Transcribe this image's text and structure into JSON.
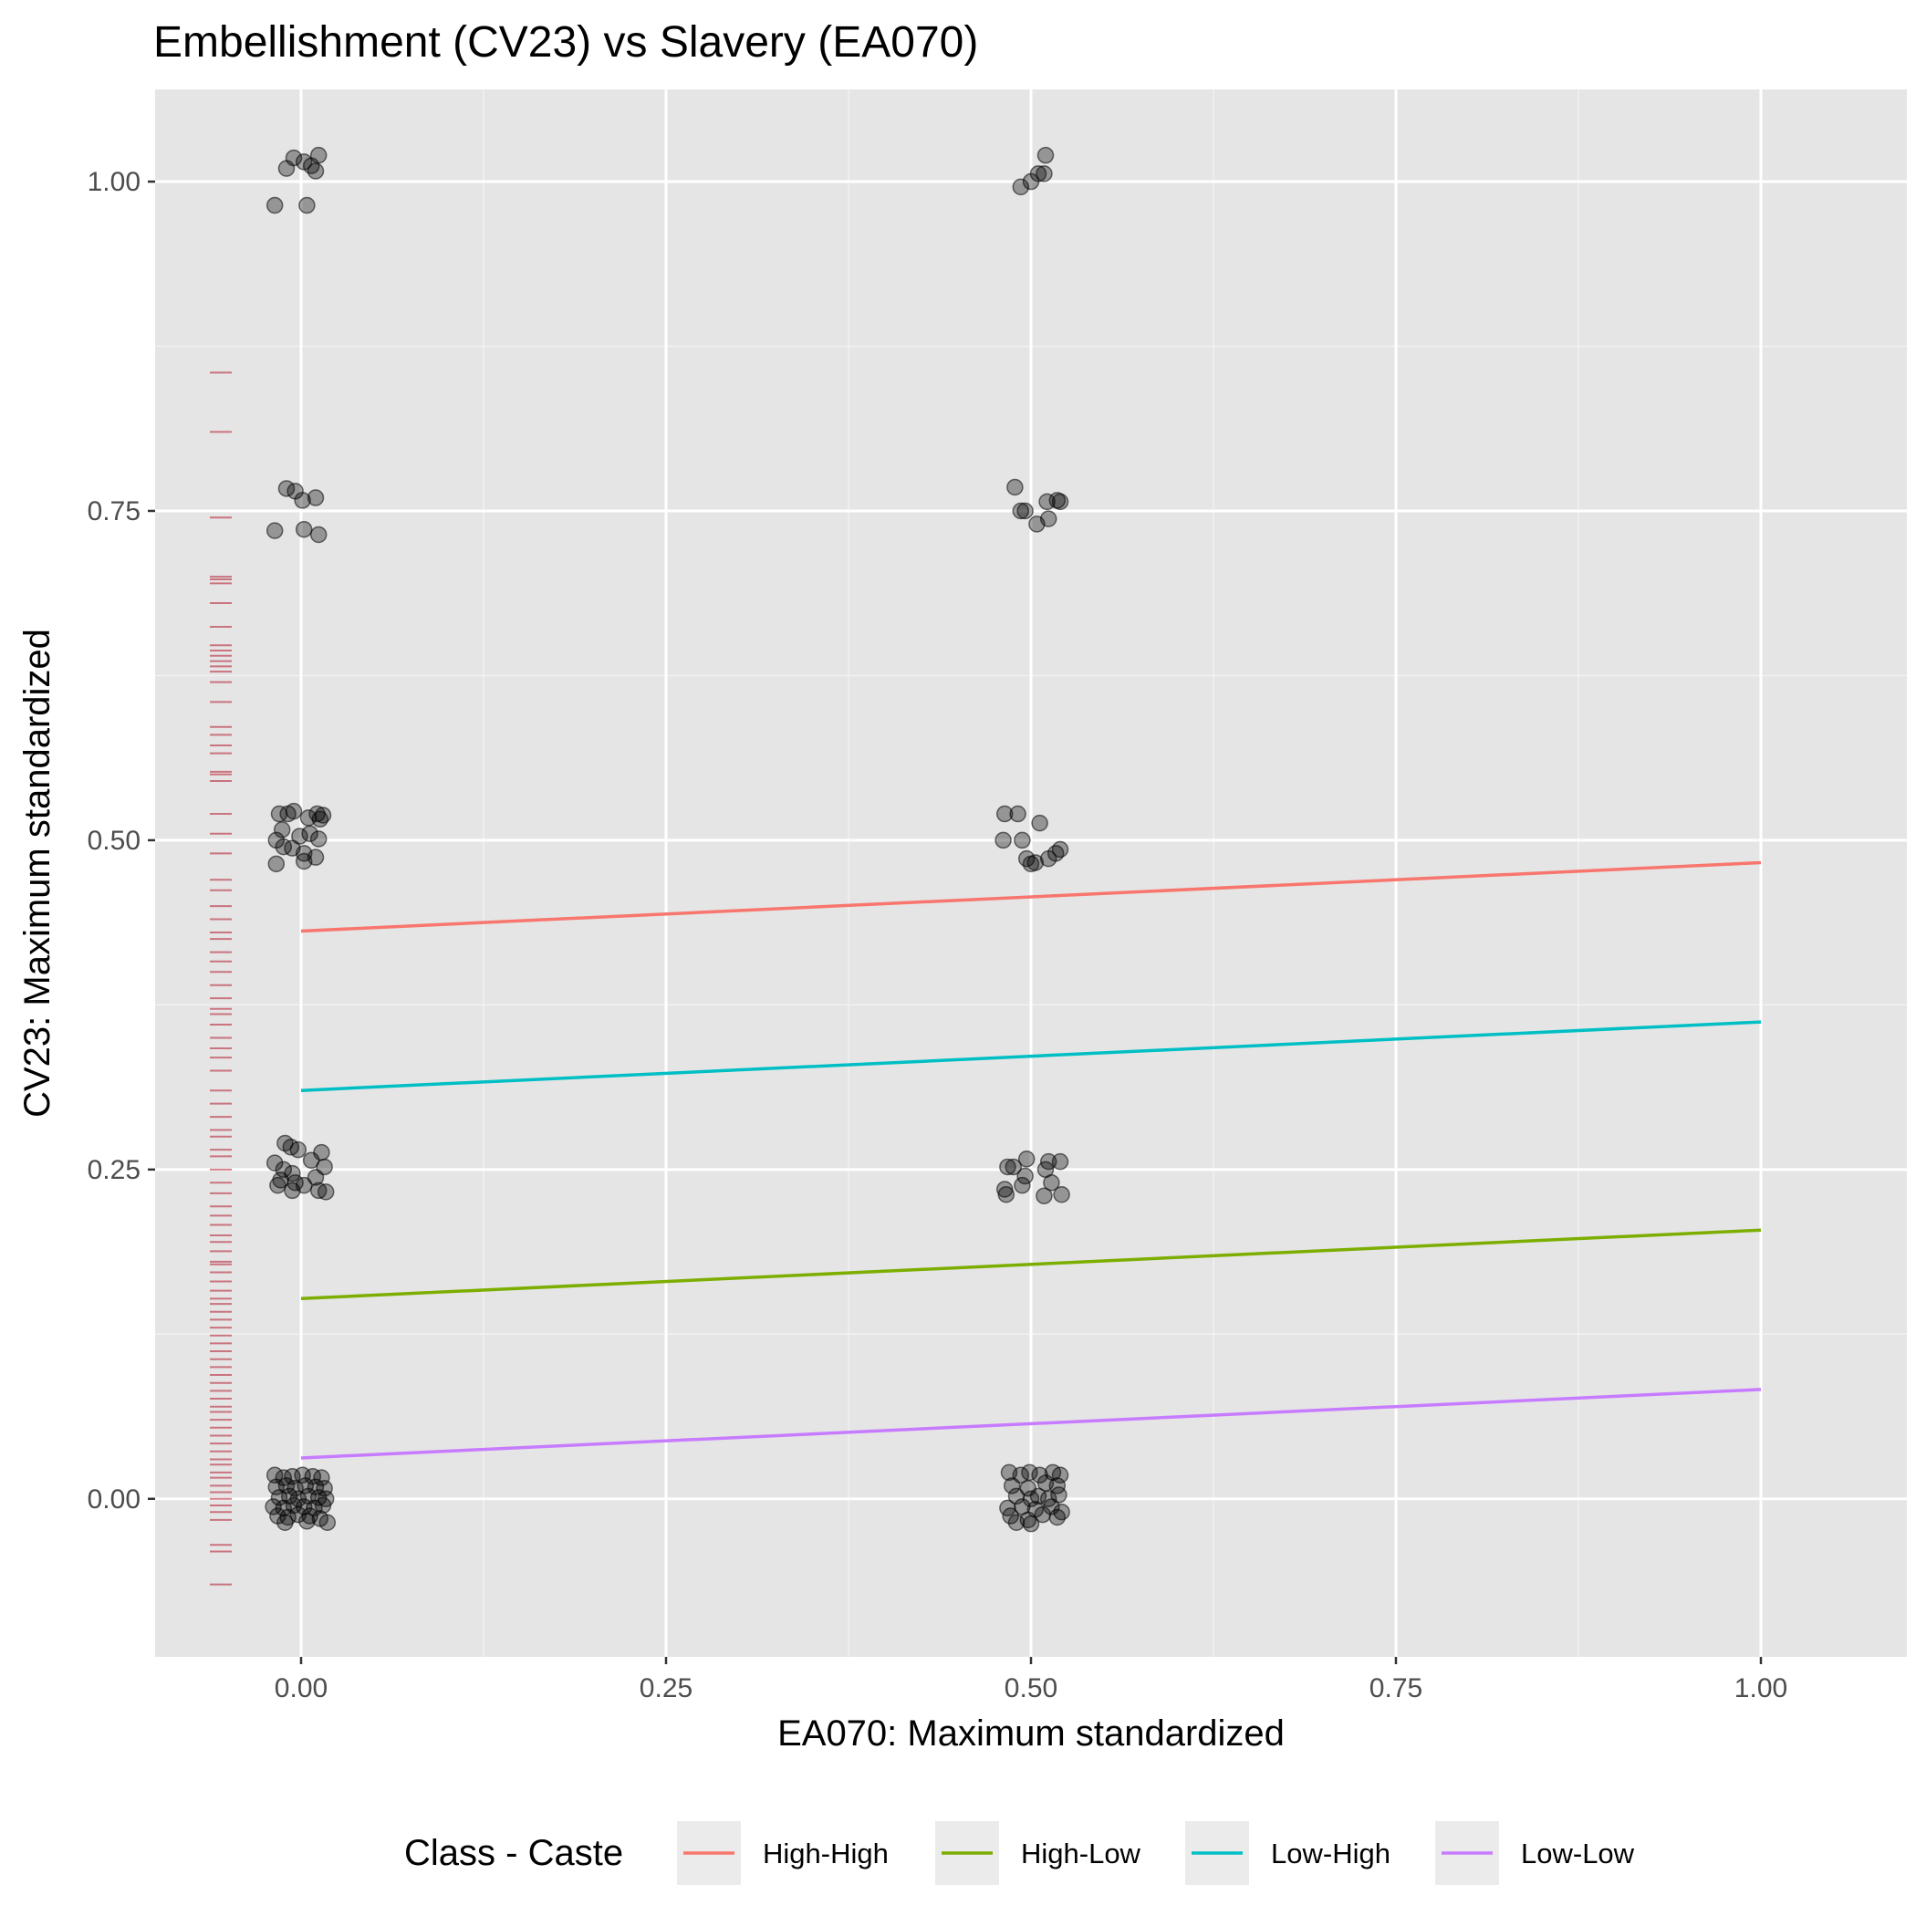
{
  "chart_data": {
    "type": "scatter",
    "title": "Embellishment (CV23) vs Slavery (EA070)",
    "xlabel": "EA070: Maximum standardized",
    "ylabel": "CV23: Maximum standardized",
    "xlim": [
      -0.1,
      1.1
    ],
    "ylim": [
      -0.12,
      1.07
    ],
    "x_ticks": [
      0,
      0.25,
      0.5,
      0.75,
      1
    ],
    "x_tick_labels": [
      "0.00",
      "0.25",
      "0.50",
      "0.75",
      "1.00"
    ],
    "y_ticks": [
      0,
      0.25,
      0.5,
      0.75,
      1
    ],
    "y_tick_labels": [
      "0.00",
      "0.25",
      "0.50",
      "0.75",
      "1.00"
    ],
    "grid": true,
    "background": "#e5e5e5",
    "legend_position": "bottom",
    "legend_title": "Class - Caste",
    "points": {
      "color": "#000000",
      "opacity": 0.35,
      "values": [
        [
          -0.01,
          1.01
        ],
        [
          -0.005,
          1.018
        ],
        [
          0.002,
          1.015
        ],
        [
          0.007,
          1.012
        ],
        [
          0.012,
          1.02
        ],
        [
          0.01,
          1.008
        ],
        [
          -0.018,
          0.982
        ],
        [
          0.004,
          0.982
        ],
        [
          -0.01,
          0.767
        ],
        [
          -0.004,
          0.765
        ],
        [
          0.001,
          0.758
        ],
        [
          0.01,
          0.76
        ],
        [
          -0.018,
          0.735
        ],
        [
          0.002,
          0.736
        ],
        [
          0.012,
          0.732
        ],
        [
          -0.015,
          0.52
        ],
        [
          -0.009,
          0.52
        ],
        [
          -0.005,
          0.522
        ],
        [
          0.005,
          0.517
        ],
        [
          0.011,
          0.52
        ],
        [
          0.015,
          0.519
        ],
        [
          0.013,
          0.516
        ],
        [
          -0.013,
          0.508
        ],
        [
          -0.001,
          0.503
        ],
        [
          0.006,
          0.505
        ],
        [
          0.012,
          0.501
        ],
        [
          -0.017,
          0.5
        ],
        [
          -0.012,
          0.495
        ],
        [
          -0.006,
          0.494
        ],
        [
          0.002,
          0.49
        ],
        [
          0.01,
          0.487
        ],
        [
          -0.017,
          0.482
        ],
        [
          0.002,
          0.484
        ],
        [
          -0.011,
          0.27
        ],
        [
          -0.007,
          0.267
        ],
        [
          -0.002,
          0.265
        ],
        [
          0.014,
          0.263
        ],
        [
          -0.018,
          0.255
        ],
        [
          -0.012,
          0.25
        ],
        [
          -0.006,
          0.247
        ],
        [
          0.007,
          0.257
        ],
        [
          0.016,
          0.252
        ],
        [
          -0.014,
          0.242
        ],
        [
          -0.004,
          0.24
        ],
        [
          0.002,
          0.238
        ],
        [
          0.01,
          0.244
        ],
        [
          -0.016,
          0.238
        ],
        [
          -0.006,
          0.234
        ],
        [
          0.012,
          0.234
        ],
        [
          0.017,
          0.233
        ],
        [
          -0.018,
          0.018
        ],
        [
          -0.012,
          0.016
        ],
        [
          -0.006,
          0.017
        ],
        [
          0.001,
          0.018
        ],
        [
          0.008,
          0.017
        ],
        [
          0.014,
          0.016
        ],
        [
          -0.017,
          0.009
        ],
        [
          -0.01,
          0.01
        ],
        [
          -0.004,
          0.008
        ],
        [
          0.003,
          0.01
        ],
        [
          0.01,
          0.009
        ],
        [
          0.016,
          0.008
        ],
        [
          -0.015,
          0.001
        ],
        [
          -0.008,
          0.002
        ],
        [
          -0.002,
          0.0
        ],
        [
          0.005,
          0.002
        ],
        [
          0.012,
          0.001
        ],
        [
          0.017,
          0.0
        ],
        [
          -0.019,
          -0.006
        ],
        [
          -0.012,
          -0.007
        ],
        [
          -0.005,
          -0.005
        ],
        [
          0.002,
          -0.006
        ],
        [
          0.009,
          -0.007
        ],
        [
          0.015,
          -0.005
        ],
        [
          -0.016,
          -0.013
        ],
        [
          -0.009,
          -0.014
        ],
        [
          -0.002,
          -0.012
        ],
        [
          0.006,
          -0.013
        ],
        [
          0.013,
          -0.015
        ],
        [
          -0.011,
          -0.018
        ],
        [
          0.004,
          -0.017
        ],
        [
          0.018,
          -0.018
        ],
        [
          0.493,
          0.996
        ],
        [
          0.5,
          1.0
        ],
        [
          0.505,
          1.006
        ],
        [
          0.509,
          1.006
        ],
        [
          0.51,
          1.02
        ],
        [
          0.489,
          0.768
        ],
        [
          0.493,
          0.75
        ],
        [
          0.496,
          0.75
        ],
        [
          0.504,
          0.74
        ],
        [
          0.511,
          0.757
        ],
        [
          0.512,
          0.744
        ],
        [
          0.518,
          0.758
        ],
        [
          0.52,
          0.757
        ],
        [
          0.482,
          0.52
        ],
        [
          0.491,
          0.52
        ],
        [
          0.506,
          0.513
        ],
        [
          0.481,
          0.5
        ],
        [
          0.494,
          0.5
        ],
        [
          0.497,
          0.486
        ],
        [
          0.503,
          0.483
        ],
        [
          0.5,
          0.482
        ],
        [
          0.512,
          0.486
        ],
        [
          0.517,
          0.49
        ],
        [
          0.52,
          0.493
        ],
        [
          0.484,
          0.252
        ],
        [
          0.488,
          0.252
        ],
        [
          0.497,
          0.258
        ],
        [
          0.51,
          0.25
        ],
        [
          0.52,
          0.256
        ],
        [
          0.512,
          0.256
        ],
        [
          0.496,
          0.245
        ],
        [
          0.514,
          0.24
        ],
        [
          0.482,
          0.235
        ],
        [
          0.483,
          0.231
        ],
        [
          0.494,
          0.238
        ],
        [
          0.509,
          0.23
        ],
        [
          0.521,
          0.231
        ],
        [
          0.485,
          0.02
        ],
        [
          0.493,
          0.018
        ],
        [
          0.499,
          0.02
        ],
        [
          0.506,
          0.018
        ],
        [
          0.515,
          0.02
        ],
        [
          0.52,
          0.018
        ],
        [
          0.487,
          0.01
        ],
        [
          0.498,
          0.008
        ],
        [
          0.51,
          0.012
        ],
        [
          0.518,
          0.01
        ],
        [
          0.49,
          0.002
        ],
        [
          0.5,
          0.0
        ],
        [
          0.505,
          0.002
        ],
        [
          0.512,
          0.0
        ],
        [
          0.519,
          0.003
        ],
        [
          0.484,
          -0.007
        ],
        [
          0.494,
          -0.006
        ],
        [
          0.503,
          -0.008
        ],
        [
          0.514,
          -0.006
        ],
        [
          0.521,
          -0.01
        ],
        [
          0.486,
          -0.013
        ],
        [
          0.498,
          -0.016
        ],
        [
          0.508,
          -0.012
        ],
        [
          0.518,
          -0.014
        ],
        [
          0.49,
          -0.018
        ],
        [
          0.5,
          -0.019
        ]
      ]
    },
    "series": [
      {
        "name": "High-High",
        "color": "#f8766d",
        "x": [
          0,
          1
        ],
        "y": [
          0.431,
          0.483
        ]
      },
      {
        "name": "High-Low",
        "color": "#7cae00",
        "x": [
          0,
          1
        ],
        "y": [
          0.152,
          0.204
        ]
      },
      {
        "name": "Low-High",
        "color": "#00bfc4",
        "x": [
          0,
          1
        ],
        "y": [
          0.31,
          0.362
        ]
      },
      {
        "name": "Low-Low",
        "color": "#c77cff",
        "x": [
          0,
          1
        ],
        "y": [
          0.031,
          0.083
        ]
      }
    ],
    "rug": {
      "axis": "y",
      "color": "#b2182b",
      "values": [
        0.855,
        0.81,
        0.745,
        0.7,
        0.698,
        0.695,
        0.68,
        0.662,
        0.648,
        0.644,
        0.64,
        0.636,
        0.632,
        0.628,
        0.62,
        0.605,
        0.586,
        0.58,
        0.572,
        0.566,
        0.552,
        0.55,
        0.545,
        0.52,
        0.505,
        0.49,
        0.47,
        0.462,
        0.45,
        0.44,
        0.43,
        0.425,
        0.415,
        0.408,
        0.4,
        0.39,
        0.38,
        0.372,
        0.368,
        0.36,
        0.35,
        0.342,
        0.335,
        0.325,
        0.31,
        0.3,
        0.29,
        0.28,
        0.275,
        0.265,
        0.26,
        0.25,
        0.24,
        0.232,
        0.222,
        0.215,
        0.208,
        0.2,
        0.195,
        0.188,
        0.18,
        0.178,
        0.172,
        0.165,
        0.158,
        0.152,
        0.148,
        0.142,
        0.136,
        0.13,
        0.124,
        0.118,
        0.112,
        0.106,
        0.1,
        0.094,
        0.088,
        0.082,
        0.076,
        0.07,
        0.066,
        0.06,
        0.054,
        0.048,
        0.042,
        0.036,
        0.03,
        0.026,
        0.02,
        0.016,
        0.01,
        0.005,
        0.0,
        -0.005,
        -0.01,
        -0.016,
        -0.035,
        -0.04,
        -0.065
      ]
    }
  }
}
